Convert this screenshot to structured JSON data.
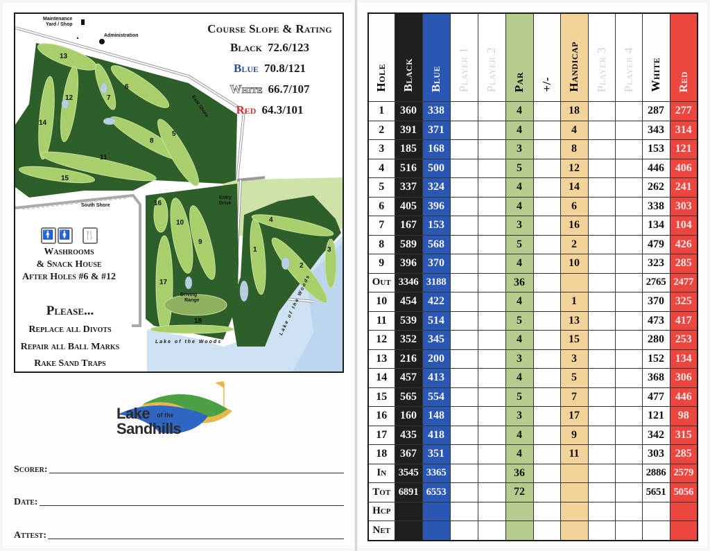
{
  "left_panel": {
    "map": {
      "labels": {
        "maintenance": "Maintenance Yard / Shop",
        "maintenance_line1": "Maintenance",
        "maintenance_line2": "Yard / Shop",
        "administration": "Administration",
        "east_shore": "East Shore",
        "south_shore": "South Shore",
        "entry_drive_line1": "Entry",
        "entry_drive_line2": "Drive",
        "driving_range_line1": "Driving",
        "driving_range_line2": "Range",
        "lake_bottom": "Lake of the Woods",
        "lake_right": "Lake of the Woods"
      },
      "holes": [
        "1",
        "2",
        "3",
        "4",
        "5",
        "6",
        "7",
        "8",
        "9",
        "10",
        "11",
        "12",
        "13",
        "14",
        "15",
        "16",
        "17",
        "18"
      ]
    },
    "rating": {
      "title": "Course Slope & Rating",
      "tees": [
        {
          "name": "Black",
          "value": "72.6/123",
          "color": "#1c1c1c"
        },
        {
          "name": "Blue",
          "value": "70.8/121",
          "color": "#2a4f9a"
        },
        {
          "name": "White",
          "value": "66.7/107",
          "color": "#ffffff"
        },
        {
          "name": "Red",
          "value": "64.3/101",
          "color": "#d9363a"
        }
      ]
    },
    "amenities": {
      "icons": [
        "man-icon",
        "woman-icon",
        "fork-knife-icon"
      ],
      "icon_glyphs": [
        "🚹",
        "🚺",
        "🍴"
      ],
      "line1": "Washrooms",
      "line2": "& Snack House",
      "line3": "After Holes #6 & #12"
    },
    "please": {
      "title": "Please...",
      "items": [
        "Replace all Divots",
        "Repair all Ball Marks",
        "Rake Sand Traps"
      ]
    },
    "logo": {
      "line1": "Lake",
      "line1_small": "of the",
      "line2": "Sandhills"
    },
    "signature": {
      "scorer_label": "Scorer:",
      "date_label": "Date:",
      "attest_label": "Attest:"
    }
  },
  "scorecard": {
    "columns": [
      "Hole",
      "Black",
      "Blue",
      "Player 1",
      "Player 2",
      "Par",
      "+/-",
      "Handicap",
      "Player 3",
      "Player 4",
      "White",
      "Red"
    ],
    "colors": {
      "black": "#1f1f1f",
      "blue": "#2a56b4",
      "par": "#b5cc8e",
      "handicap": "#f3d39a",
      "red": "#ec4640"
    },
    "rows": [
      {
        "hole": "1",
        "black": "360",
        "blue": "338",
        "par": "4",
        "handicap": "18",
        "white": "287",
        "red": "277"
      },
      {
        "hole": "2",
        "black": "391",
        "blue": "371",
        "par": "4",
        "handicap": "4",
        "white": "343",
        "red": "314"
      },
      {
        "hole": "3",
        "black": "185",
        "blue": "168",
        "par": "3",
        "handicap": "8",
        "white": "153",
        "red": "121"
      },
      {
        "hole": "4",
        "black": "516",
        "blue": "500",
        "par": "5",
        "handicap": "12",
        "white": "446",
        "red": "406"
      },
      {
        "hole": "5",
        "black": "337",
        "blue": "324",
        "par": "4",
        "handicap": "14",
        "white": "262",
        "red": "241"
      },
      {
        "hole": "6",
        "black": "405",
        "blue": "396",
        "par": "4",
        "handicap": "6",
        "white": "338",
        "red": "303"
      },
      {
        "hole": "7",
        "black": "167",
        "blue": "153",
        "par": "3",
        "handicap": "16",
        "white": "134",
        "red": "104"
      },
      {
        "hole": "8",
        "black": "589",
        "blue": "568",
        "par": "5",
        "handicap": "2",
        "white": "479",
        "red": "426"
      },
      {
        "hole": "9",
        "black": "396",
        "blue": "370",
        "par": "4",
        "handicap": "10",
        "white": "323",
        "red": "285"
      },
      {
        "hole": "Out",
        "black": "3346",
        "blue": "3188",
        "par": "36",
        "handicap": "",
        "white": "2765",
        "red": "2477"
      },
      {
        "hole": "10",
        "black": "454",
        "blue": "422",
        "par": "4",
        "handicap": "1",
        "white": "370",
        "red": "325"
      },
      {
        "hole": "11",
        "black": "539",
        "blue": "514",
        "par": "5",
        "handicap": "13",
        "white": "473",
        "red": "417"
      },
      {
        "hole": "12",
        "black": "352",
        "blue": "345",
        "par": "4",
        "handicap": "15",
        "white": "280",
        "red": "253"
      },
      {
        "hole": "13",
        "black": "216",
        "blue": "200",
        "par": "3",
        "handicap": "3",
        "white": "152",
        "red": "134"
      },
      {
        "hole": "14",
        "black": "457",
        "blue": "413",
        "par": "4",
        "handicap": "5",
        "white": "368",
        "red": "306"
      },
      {
        "hole": "15",
        "black": "565",
        "blue": "554",
        "par": "5",
        "handicap": "7",
        "white": "477",
        "red": "446"
      },
      {
        "hole": "16",
        "black": "160",
        "blue": "148",
        "par": "3",
        "handicap": "17",
        "white": "121",
        "red": "98"
      },
      {
        "hole": "17",
        "black": "435",
        "blue": "418",
        "par": "4",
        "handicap": "9",
        "white": "342",
        "red": "315"
      },
      {
        "hole": "18",
        "black": "367",
        "blue": "351",
        "par": "4",
        "handicap": "11",
        "white": "303",
        "red": "285"
      },
      {
        "hole": "In",
        "black": "3545",
        "blue": "3365",
        "par": "36",
        "handicap": "",
        "white": "2886",
        "red": "2579"
      },
      {
        "hole": "Tot",
        "black": "6891",
        "blue": "6553",
        "par": "72",
        "handicap": "",
        "white": "5651",
        "red": "5056"
      },
      {
        "hole": "Hcp",
        "black": "",
        "blue": "",
        "par": "",
        "handicap": "",
        "white": "",
        "red": ""
      },
      {
        "hole": "Net",
        "black": "",
        "blue": "",
        "par": "",
        "handicap": "",
        "white": "",
        "red": ""
      }
    ]
  }
}
